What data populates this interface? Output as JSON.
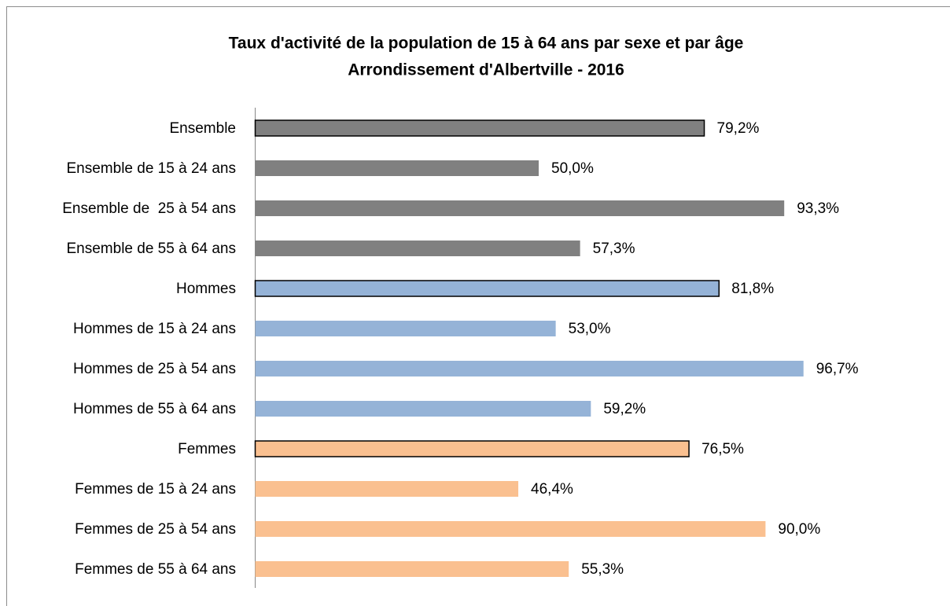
{
  "chart_data": {
    "type": "barh",
    "title": [
      "Taux d'activité de la population de 15 à 64 ans par sexe et par âge",
      "Arrondissement d'Albertville - 2016"
    ],
    "categories": [
      "Ensemble",
      "Ensemble de 15 à 24 ans",
      "Ensemble de  25 à 54 ans",
      "Ensemble de 55 à 64 ans",
      "Hommes",
      "Hommes de 15 à 24 ans",
      "Hommes de 25 à 54 ans",
      "Hommes de 55 à 64 ans",
      "Femmes",
      "Femmes de 15 à 24 ans",
      "Femmes de 25 à 54 ans",
      "Femmes de 55 à 64 ans"
    ],
    "values": [
      79.2,
      50.0,
      93.3,
      57.3,
      81.8,
      53.0,
      96.7,
      59.2,
      76.5,
      46.4,
      90.0,
      55.3
    ],
    "value_labels": [
      "79,2%",
      "50,0%",
      "93,3%",
      "57,3%",
      "81,8%",
      "53,0%",
      "96,7%",
      "59,2%",
      "76,5%",
      "46,4%",
      "90,0%",
      "55,3%"
    ],
    "colors": [
      "#808080",
      "#808080",
      "#808080",
      "#808080",
      "#95b3d7",
      "#95b3d7",
      "#95b3d7",
      "#95b3d7",
      "#fac090",
      "#fac090",
      "#fac090",
      "#fac090"
    ],
    "edgecolors": [
      "#000000",
      null,
      null,
      null,
      "#000000",
      null,
      null,
      null,
      "#000000",
      null,
      null,
      null
    ],
    "xlim": [
      0,
      100
    ]
  }
}
